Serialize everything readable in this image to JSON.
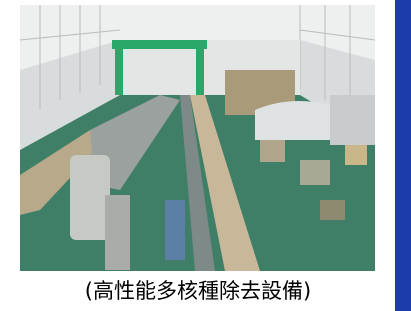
{
  "caption": "(高性能多核種除去設備)"
}
